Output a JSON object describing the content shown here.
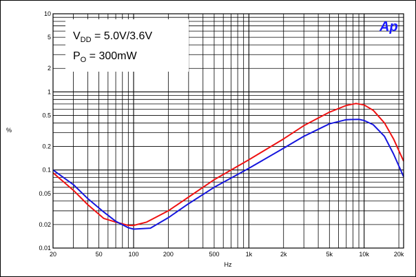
{
  "chart_data": {
    "type": "line",
    "xscale": "log",
    "yscale": "log",
    "xlim": [
      20,
      22000
    ],
    "ylim": [
      0.01,
      10
    ],
    "xlabel": "Hz",
    "ylabel": "%",
    "grid": true,
    "x_ticks": [
      {
        "value": 20,
        "label": "20"
      },
      {
        "value": 50,
        "label": "50"
      },
      {
        "value": 100,
        "label": "100"
      },
      {
        "value": 200,
        "label": "200"
      },
      {
        "value": 500,
        "label": "500"
      },
      {
        "value": 1000,
        "label": "1k"
      },
      {
        "value": 2000,
        "label": "2k"
      },
      {
        "value": 5000,
        "label": "5k"
      },
      {
        "value": 10000,
        "label": "10k"
      },
      {
        "value": 20000,
        "label": "20k"
      }
    ],
    "y_ticks": [
      {
        "value": 10,
        "label": "10"
      },
      {
        "value": 5,
        "label": "5"
      },
      {
        "value": 2,
        "label": "2"
      },
      {
        "value": 1,
        "label": "1"
      },
      {
        "value": 0.5,
        "label": "0.5"
      },
      {
        "value": 0.2,
        "label": "0.2"
      },
      {
        "value": 0.1,
        "label": "0.1"
      },
      {
        "value": 0.05,
        "label": "0.05"
      },
      {
        "value": 0.02,
        "label": "0.02"
      },
      {
        "value": 0.01,
        "label": "0.01"
      }
    ],
    "legend": {
      "line1_main": "V",
      "line1_sub": "DD",
      "line1_rest": " = 5.0V/3.6V",
      "line2_main": "P",
      "line2_sub": "O",
      "line2_rest": " = 300mW"
    },
    "logo": "Ap",
    "series": [
      {
        "color": "#ee1111",
        "points": [
          [
            20,
            0.092
          ],
          [
            30,
            0.055
          ],
          [
            40,
            0.036
          ],
          [
            55,
            0.024
          ],
          [
            70,
            0.0215
          ],
          [
            90,
            0.0195
          ],
          [
            100,
            0.0195
          ],
          [
            130,
            0.0215
          ],
          [
            200,
            0.03
          ],
          [
            300,
            0.045
          ],
          [
            500,
            0.075
          ],
          [
            1000,
            0.135
          ],
          [
            2000,
            0.25
          ],
          [
            3000,
            0.37
          ],
          [
            5000,
            0.55
          ],
          [
            7000,
            0.67
          ],
          [
            8500,
            0.71
          ],
          [
            10000,
            0.68
          ],
          [
            12000,
            0.58
          ],
          [
            15000,
            0.4
          ],
          [
            18000,
            0.25
          ],
          [
            22000,
            0.13
          ]
        ]
      },
      {
        "color": "#1515dd",
        "points": [
          [
            20,
            0.1
          ],
          [
            30,
            0.065
          ],
          [
            40,
            0.043
          ],
          [
            55,
            0.029
          ],
          [
            70,
            0.022
          ],
          [
            90,
            0.0182
          ],
          [
            100,
            0.0175
          ],
          [
            140,
            0.018
          ],
          [
            200,
            0.0245
          ],
          [
            300,
            0.037
          ],
          [
            500,
            0.06
          ],
          [
            1000,
            0.105
          ],
          [
            2000,
            0.19
          ],
          [
            3000,
            0.27
          ],
          [
            5000,
            0.39
          ],
          [
            7000,
            0.44
          ],
          [
            9000,
            0.445
          ],
          [
            10000,
            0.43
          ],
          [
            12000,
            0.38
          ],
          [
            15000,
            0.27
          ],
          [
            18000,
            0.16
          ],
          [
            22000,
            0.082
          ]
        ]
      }
    ]
  }
}
